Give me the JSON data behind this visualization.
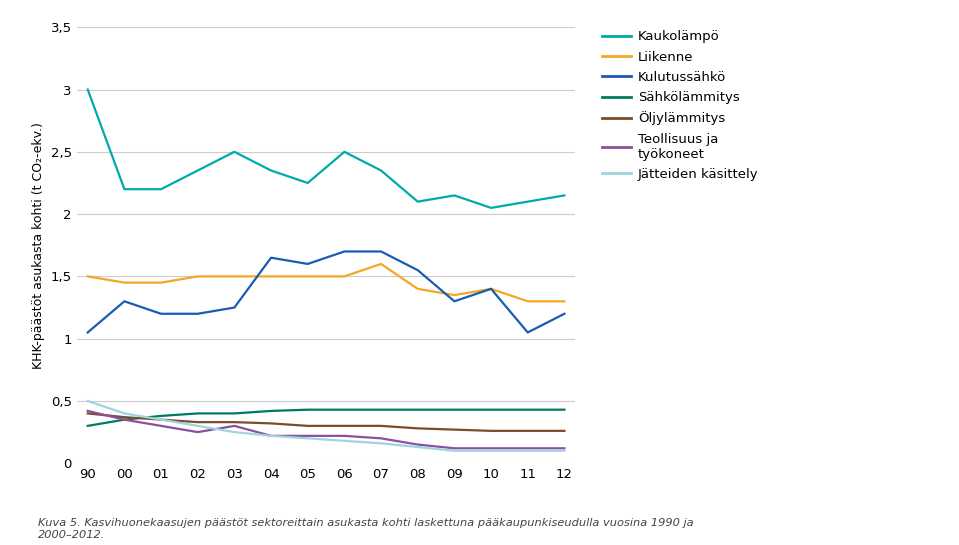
{
  "years": [
    90,
    0,
    1,
    2,
    3,
    4,
    5,
    6,
    7,
    8,
    9,
    10,
    11,
    12
  ],
  "year_labels": [
    "90",
    "00",
    "01",
    "02",
    "03",
    "04",
    "05",
    "06",
    "07",
    "08",
    "09",
    "10",
    "11",
    "12"
  ],
  "series": {
    "Kaukolämpö": {
      "color": "#00AAAA",
      "values": [
        3.0,
        2.2,
        2.2,
        2.35,
        2.5,
        2.35,
        2.25,
        2.5,
        2.35,
        2.1,
        2.15,
        2.05,
        2.1,
        2.15
      ]
    },
    "Liikenne": {
      "color": "#F5A623",
      "values": [
        1.5,
        1.45,
        1.45,
        1.5,
        1.5,
        1.5,
        1.5,
        1.5,
        1.6,
        1.4,
        1.35,
        1.4,
        1.3,
        1.3
      ]
    },
    "Kulutussähkö": {
      "color": "#1A5BB5",
      "values": [
        1.05,
        1.3,
        1.2,
        1.2,
        1.25,
        1.65,
        1.6,
        1.7,
        1.7,
        1.55,
        1.3,
        1.4,
        1.05,
        1.2
      ]
    },
    "Sähkölämmitys": {
      "color": "#007A60",
      "values": [
        0.3,
        0.35,
        0.38,
        0.4,
        0.4,
        0.42,
        0.43,
        0.43,
        0.43,
        0.43,
        0.43,
        0.43,
        0.43,
        0.43
      ]
    },
    "Öljylämmitys": {
      "color": "#7B4C2A",
      "values": [
        0.4,
        0.37,
        0.35,
        0.33,
        0.33,
        0.32,
        0.3,
        0.3,
        0.3,
        0.28,
        0.27,
        0.26,
        0.26,
        0.26
      ]
    },
    "Teollisuus ja työkoneet": {
      "color": "#8B4FA0",
      "values": [
        0.42,
        0.35,
        0.3,
        0.25,
        0.3,
        0.22,
        0.22,
        0.22,
        0.2,
        0.15,
        0.12,
        0.12,
        0.12,
        0.12
      ]
    },
    "Jätteiden käsittely": {
      "color": "#9DD5E0",
      "values": [
        0.5,
        0.4,
        0.35,
        0.3,
        0.25,
        0.22,
        0.2,
        0.18,
        0.16,
        0.13,
        0.1,
        0.1,
        0.1,
        0.1
      ]
    }
  },
  "ylabel": "KHK-päästöt asukasta kohti (t CO₂-ekv.)",
  "ylim": [
    0,
    3.5
  ],
  "yticks": [
    0,
    0.5,
    1,
    1.5,
    2,
    2.5,
    3,
    3.5
  ],
  "ytick_labels": [
    "0",
    "0,5",
    "1",
    "1,5",
    "2",
    "2,5",
    "3",
    "3,5"
  ],
  "caption": "Kuva 5. Kasvihuonekaasujen päästöt sektoreittain asukasta kohti laskettuna pääkaupunkiseudulla vuosina 1990 ja\n2000–2012.",
  "grid_color": "#CCCCCC",
  "background_color": "#FFFFFF",
  "legend_order": [
    "Kaukolämpö",
    "Liikenne",
    "Kulutussähkö",
    "Sähkölämmitys",
    "Öljylämmitys",
    "Teollisuus ja työkoneet",
    "Jätteiden käsittely"
  ],
  "legend_display": [
    "Kaukolämpö",
    "Liikenne",
    "Kulutussähkö",
    "Sähkölämmitys",
    "Öljylämmitys",
    "Teollisuus ja\ntyökoneet",
    "Jätteiden käsittely"
  ]
}
